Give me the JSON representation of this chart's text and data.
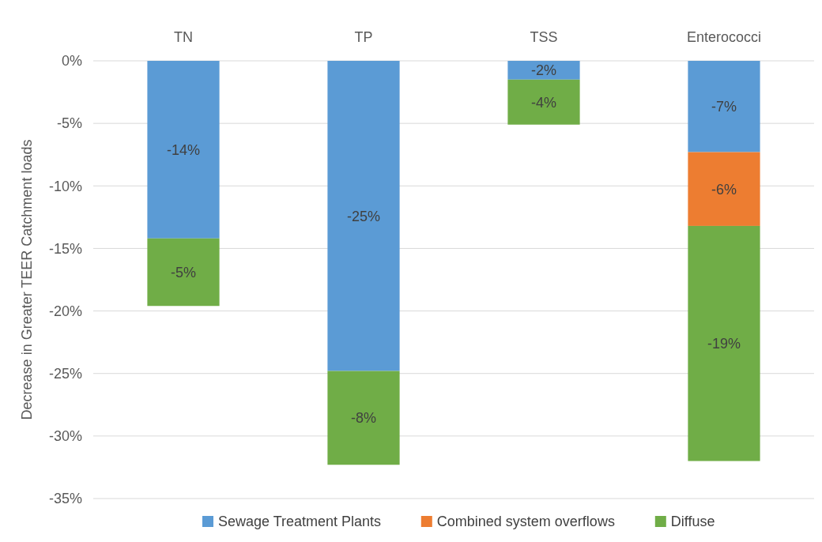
{
  "chart_data": {
    "type": "bar",
    "stacked": true,
    "categories": [
      "TN",
      "TP",
      "TSS",
      "Enterococci"
    ],
    "ylabel": "Decrease in Greater TEER Catchment loads",
    "ylim": [
      -35,
      0
    ],
    "yticks": [
      {
        "value": 0,
        "label": "0%"
      },
      {
        "value": -5,
        "label": "-5%"
      },
      {
        "value": -10,
        "label": "-10%"
      },
      {
        "value": -15,
        "label": "-15%"
      },
      {
        "value": -20,
        "label": "-20%"
      },
      {
        "value": -25,
        "label": "-25%"
      },
      {
        "value": -30,
        "label": "-30%"
      },
      {
        "value": -35,
        "label": "-35%"
      }
    ],
    "grid": "y",
    "legend": "bottom",
    "series": [
      {
        "name": "Sewage Treatment Plants",
        "color": "#5b9bd5",
        "values": [
          -14.2,
          -24.8,
          -1.5,
          -7.3
        ],
        "value_labels": [
          "-14%",
          "-25%",
          "-2%",
          "-7%"
        ]
      },
      {
        "name": "Combined system overflows",
        "color": "#ed7d31",
        "values": [
          null,
          null,
          null,
          -5.9
        ],
        "value_labels": [
          null,
          null,
          null,
          "-6%"
        ]
      },
      {
        "name": "Diffuse",
        "color": "#70ad47",
        "values": [
          -5.4,
          -7.5,
          -3.6,
          -18.8
        ],
        "value_labels": [
          "-5%",
          "-8%",
          "-4%",
          "-19%"
        ]
      }
    ]
  }
}
